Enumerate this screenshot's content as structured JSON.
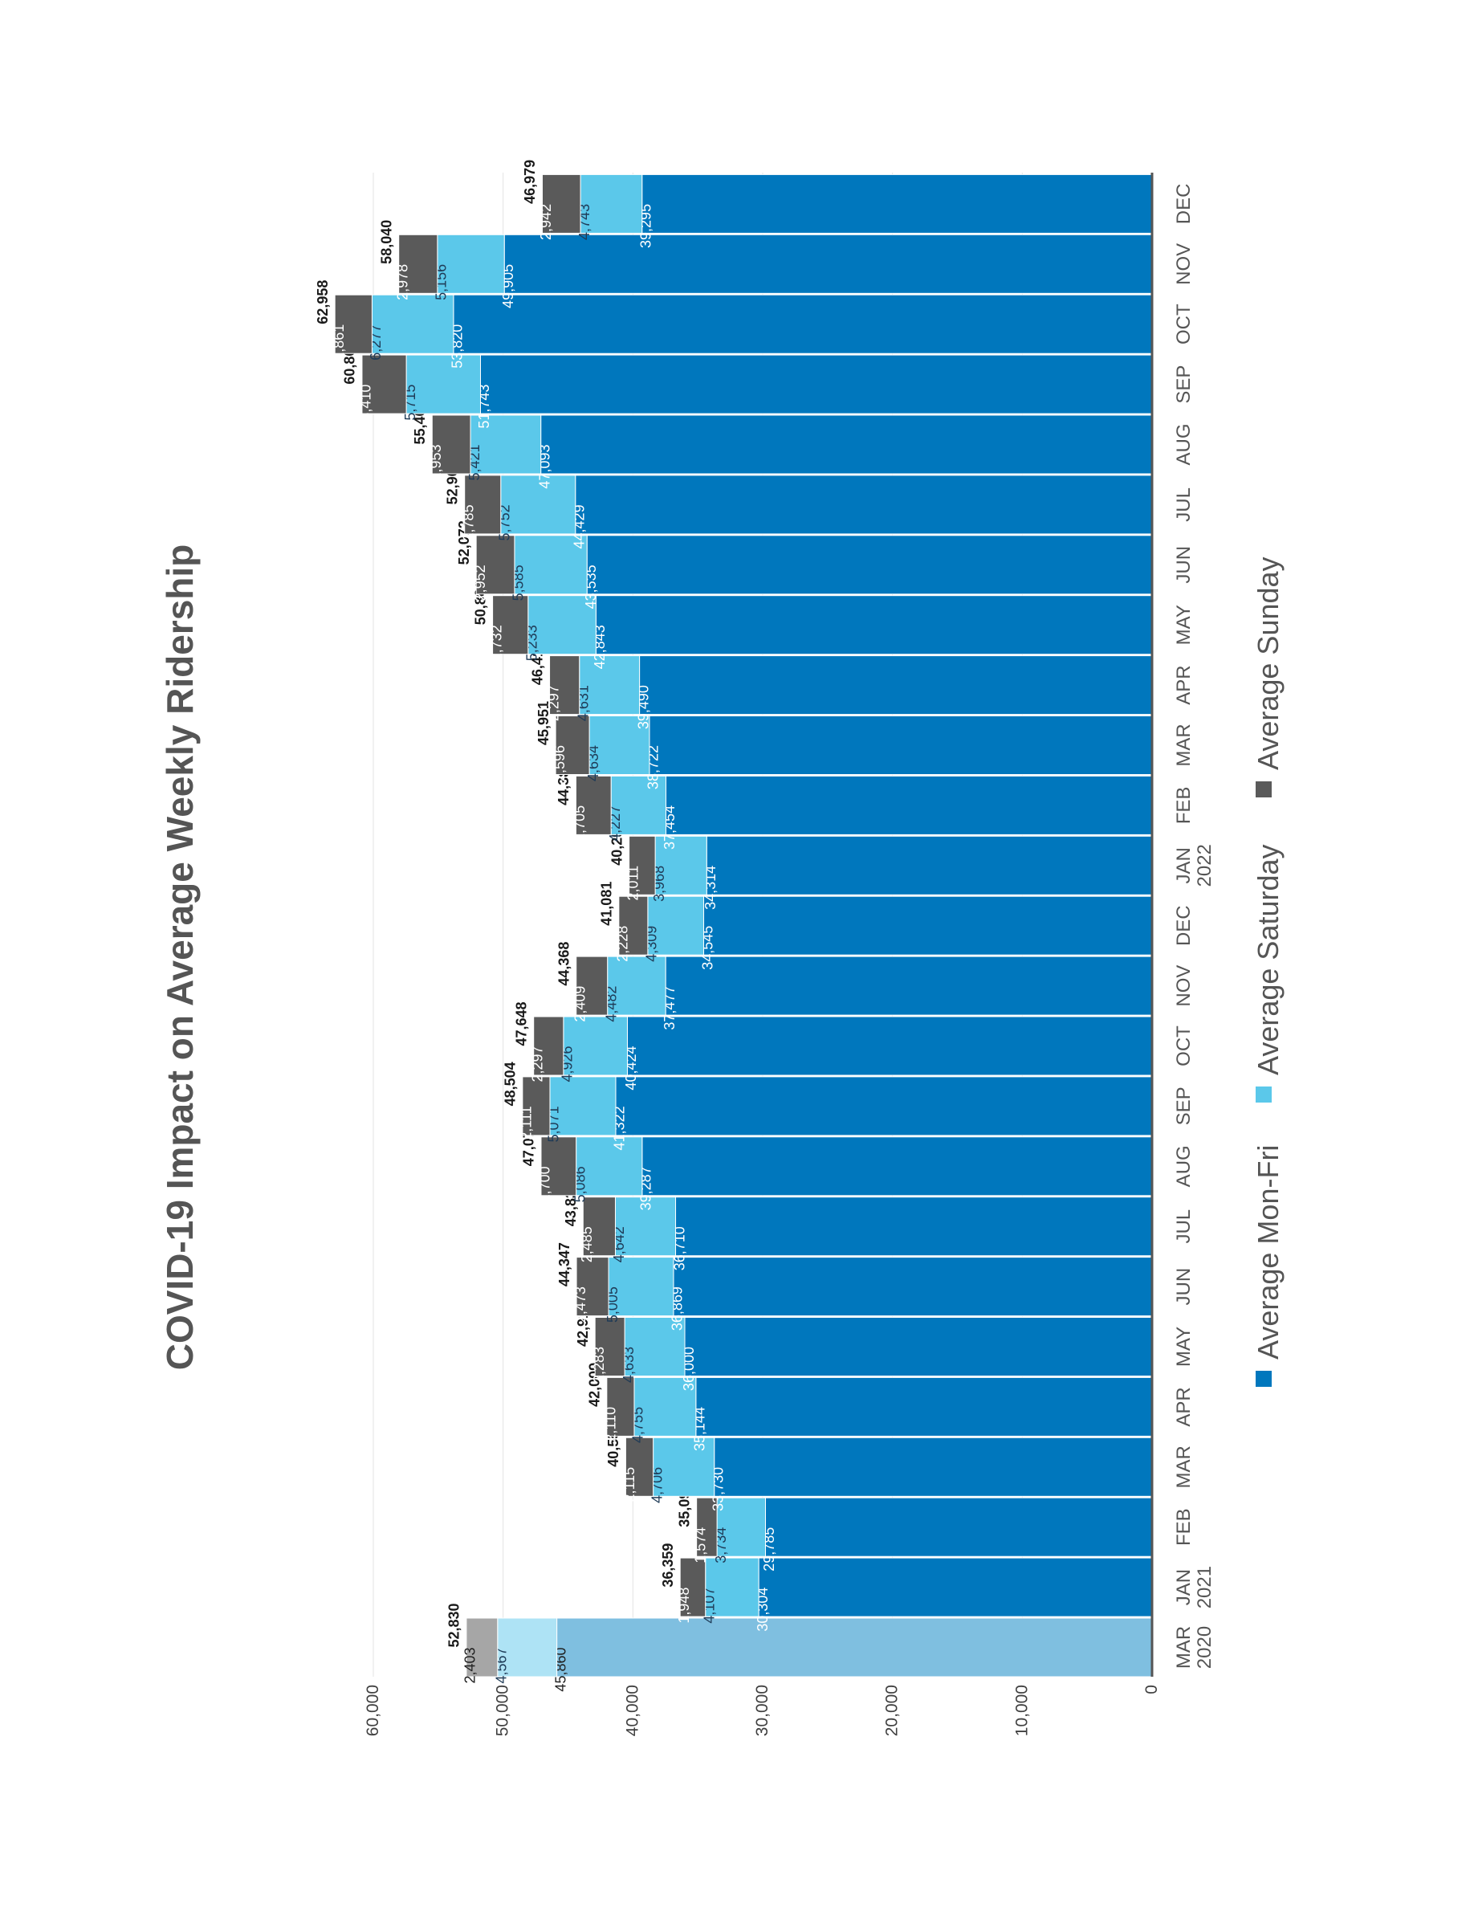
{
  "chart_data": {
    "type": "bar",
    "stacked": true,
    "orientation": "vertical",
    "title": "COVID-19 Impact on Average Weekly Ridership",
    "categories": [
      "MAR 2020",
      "JAN 2021",
      "FEB",
      "MAR",
      "APR",
      "MAY",
      "JUN",
      "JUL",
      "AUG",
      "SEP",
      "OCT",
      "NOV",
      "DEC",
      "JAN 2022",
      "FEB",
      "MAR",
      "APR",
      "MAY",
      "JUN",
      "JUL",
      "AUG",
      "SEP",
      "OCT",
      "NOV",
      "DEC"
    ],
    "category_labels": [
      [
        "MAR",
        "2020"
      ],
      [
        "JAN",
        "2021"
      ],
      [
        "FEB",
        ""
      ],
      [
        "MAR",
        ""
      ],
      [
        "APR",
        ""
      ],
      [
        "MAY",
        ""
      ],
      [
        "JUN",
        ""
      ],
      [
        "JUL",
        ""
      ],
      [
        "AUG",
        ""
      ],
      [
        "SEP",
        ""
      ],
      [
        "OCT",
        ""
      ],
      [
        "NOV",
        ""
      ],
      [
        "DEC",
        ""
      ],
      [
        "JAN",
        "2022"
      ],
      [
        "FEB",
        ""
      ],
      [
        "MAR",
        ""
      ],
      [
        "APR",
        ""
      ],
      [
        "MAY",
        ""
      ],
      [
        "JUN",
        ""
      ],
      [
        "JUL",
        ""
      ],
      [
        "AUG",
        ""
      ],
      [
        "SEP",
        ""
      ],
      [
        "OCT",
        ""
      ],
      [
        "NOV",
        ""
      ],
      [
        "DEC",
        ""
      ]
    ],
    "series": [
      {
        "name": "Average Mon-Fri",
        "color": "#0077BD",
        "values": [
          45860,
          30304,
          29785,
          33730,
          35144,
          36000,
          36869,
          36710,
          39287,
          41322,
          40424,
          37477,
          34545,
          34314,
          37454,
          38722,
          39490,
          42843,
          43535,
          44429,
          47093,
          51743,
          53820,
          49905,
          39295
        ]
      },
      {
        "name": "Average Saturday",
        "color": "#5BC8EA",
        "values": [
          4567,
          4107,
          3734,
          4706,
          4755,
          4633,
          5005,
          4642,
          5086,
          5071,
          4926,
          4482,
          4309,
          3968,
          4227,
          4634,
          4631,
          5233,
          5585,
          5752,
          5421,
          5715,
          6277,
          5156,
          4743
        ]
      },
      {
        "name": "Average Sunday",
        "color": "#5A5A5A",
        "values": [
          2403,
          1948,
          1574,
          2115,
          2110,
          2283,
          2473,
          2485,
          2700,
          2111,
          2297,
          2409,
          2228,
          2011,
          2705,
          2596,
          2297,
          2732,
          2952,
          2785,
          2953,
          3410,
          2861,
          2978,
          2942
        ]
      }
    ],
    "value_labels": {
      "mon_fri": [
        "45,860",
        "30,304",
        "29,785",
        "33,730",
        "35,144",
        "36,000",
        "36,869",
        "36,710",
        "39,287",
        "41,322",
        "40,424",
        "37,477",
        "34,545",
        "34,314",
        "37,454",
        "38,722",
        "39,490",
        "42,843",
        "43,535",
        "44,429",
        "47,093",
        "51,743",
        "53,820",
        "49,905",
        "39,295"
      ],
      "saturday": [
        "4,567",
        "4,107",
        "3,734",
        "4,706",
        "4,755",
        "4,633",
        "5,005",
        "4,642",
        "5,086",
        "5,071",
        "4,926",
        "4,482",
        "4,309",
        "3,968",
        "4,227",
        "4,634",
        "4,631",
        "5,233",
        "5,585",
        "5,752",
        "5,421",
        "5,715",
        "6,277",
        "5,156",
        "4,743"
      ],
      "sunday": [
        "2,403",
        "1,948",
        "1,574",
        "2,115",
        "2,110",
        "2,283",
        "2,473",
        "2,485",
        "2,700",
        "2,111",
        "2,297",
        "2,409",
        "2,228",
        "2,011",
        "2,705",
        "2,596",
        "2,297",
        "2,732",
        "2,952",
        "2,785",
        "2,953",
        "3,410",
        "2,861",
        "2,978",
        "2,942"
      ]
    },
    "totals": [
      "52,830",
      "36,359",
      "35,094",
      "40,551",
      "42,009",
      "42,916",
      "44,347",
      "43,838",
      "47,073",
      "48,504",
      "47,648",
      "44,368",
      "41,081",
      "40,293",
      "44,386",
      "45,951",
      "46,419",
      "50,808",
      "52,072",
      "52,966",
      "55,467",
      "60,868",
      "62,958",
      "58,040",
      "46,979"
    ],
    "baseline_faded_colors": [
      "#7FBFE0",
      "#AEE3F5",
      "#A6A6A6"
    ],
    "y_ticks": [
      "0",
      "10,000",
      "20,000",
      "30,000",
      "40,000",
      "50,000",
      "60,000"
    ],
    "ylim": [
      0,
      60000
    ],
    "grid": true,
    "legend_position": "bottom",
    "rotation": "page rotated 90 degrees counter-clockwise"
  }
}
